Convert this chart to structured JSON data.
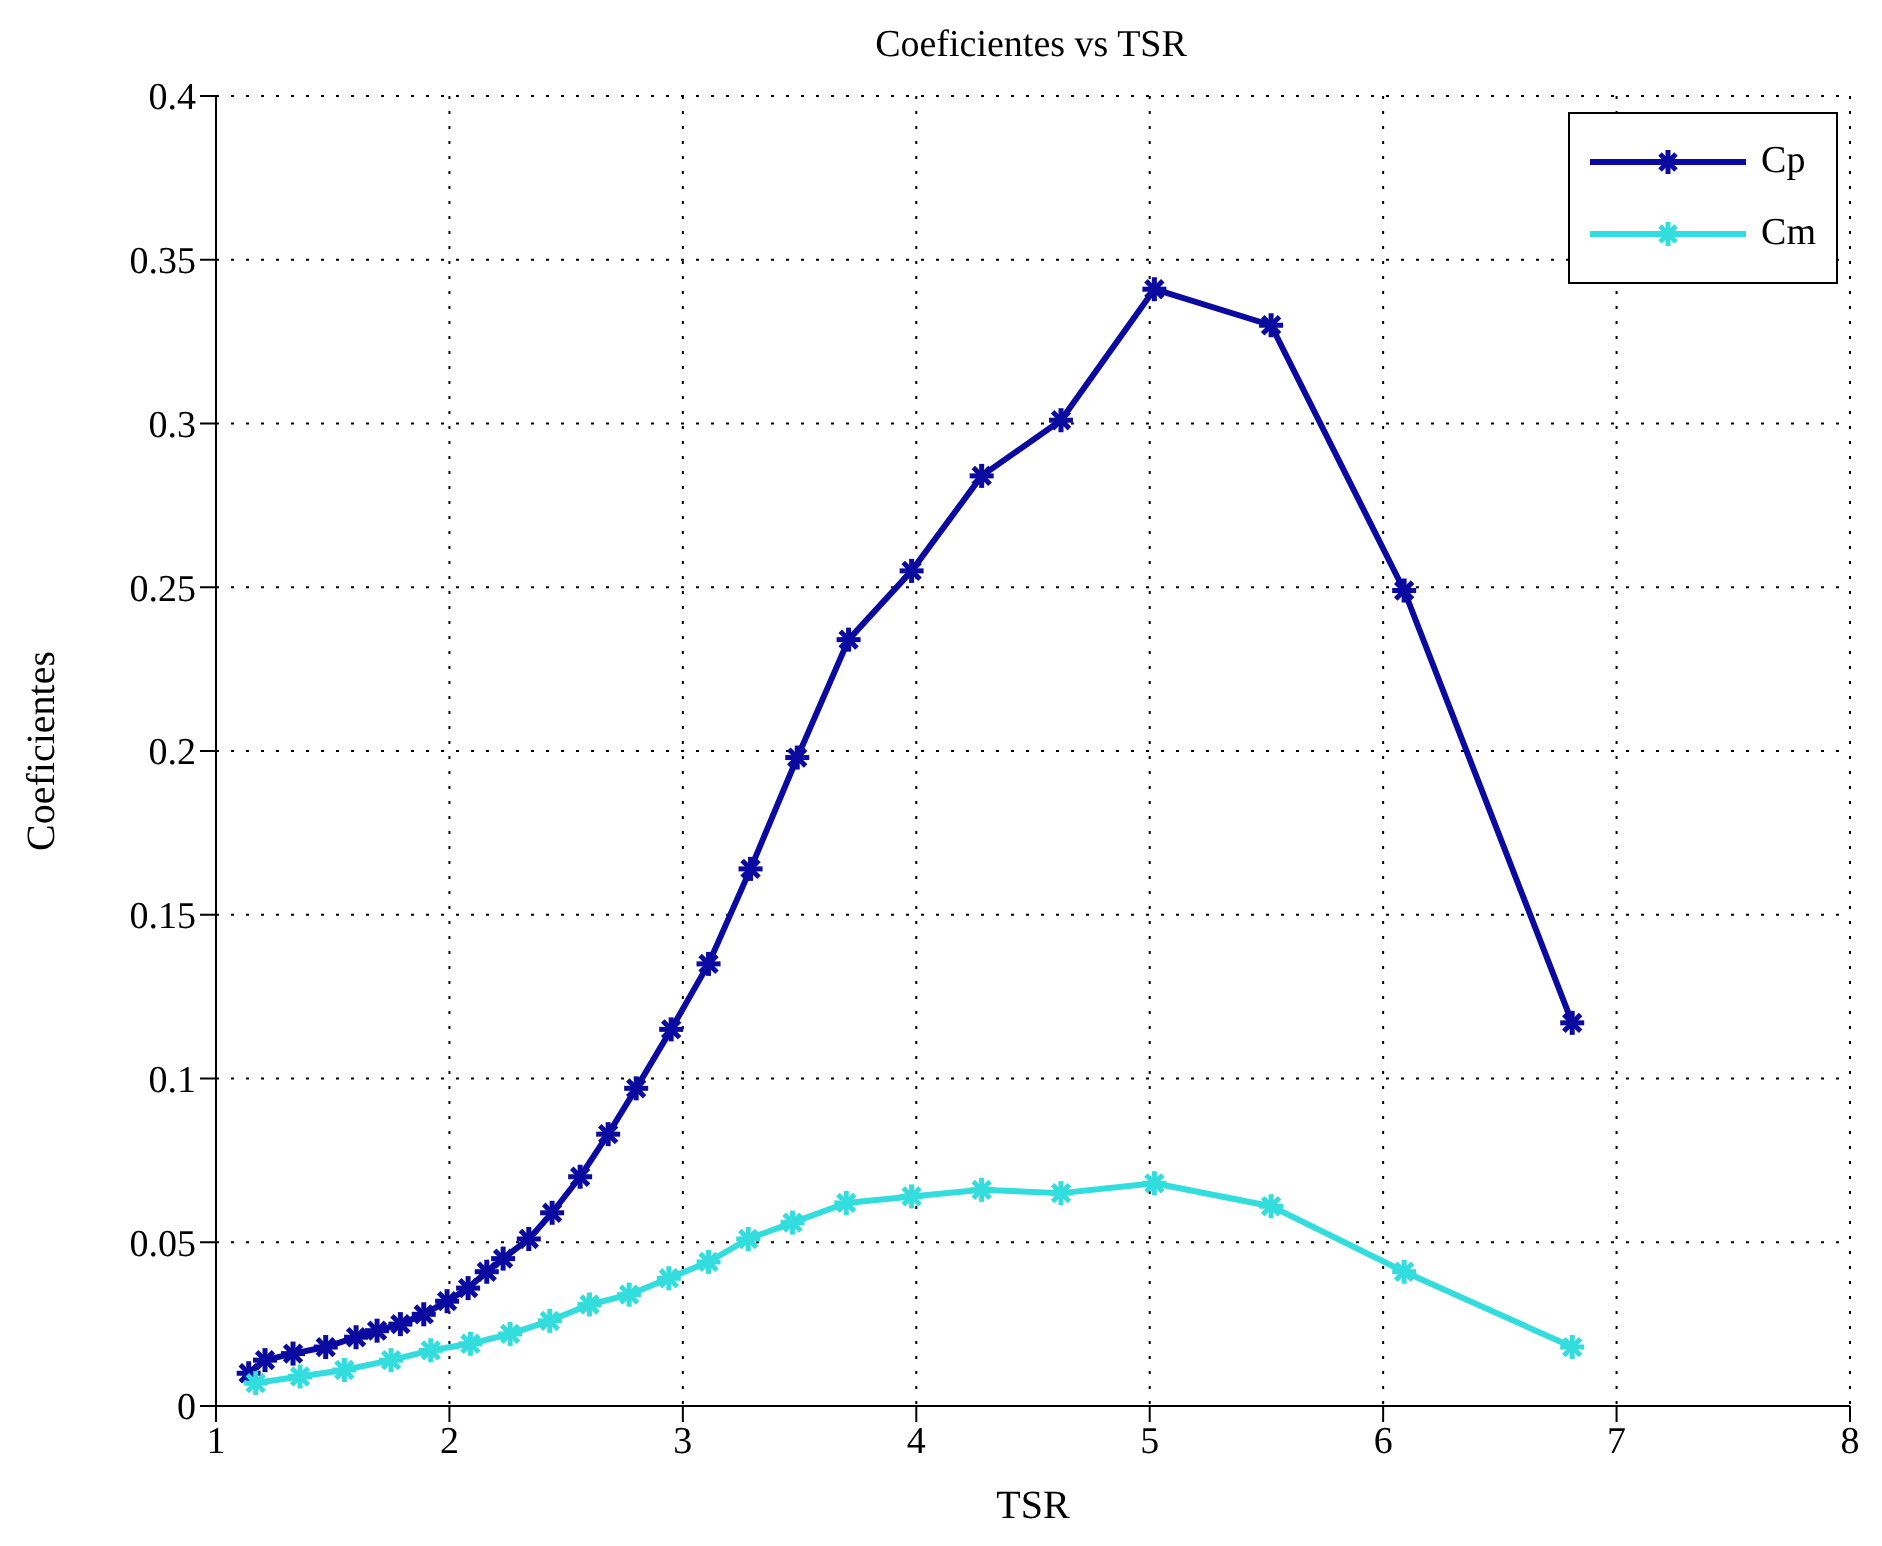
{
  "chart_data": {
    "type": "line",
    "title": "Coeficientes vs TSR",
    "xlabel": "TSR",
    "ylabel": "Coeficientes",
    "xlim": [
      1,
      8
    ],
    "xticks": [
      1,
      2,
      3,
      4,
      5,
      6,
      7,
      8
    ],
    "ylim": [
      0,
      0.4
    ],
    "yticks": [
      0,
      0.05,
      0.1,
      0.15,
      0.2,
      0.25,
      0.3,
      0.35,
      0.4
    ],
    "grid": true,
    "legend": "top right",
    "marker": "cross",
    "line_style": "solid",
    "series": [
      {
        "name": "Cp",
        "color": "#0a0aa0",
        "x": [
          1.14,
          1.21,
          1.33,
          1.47,
          1.6,
          1.69,
          1.79,
          1.89,
          1.99,
          2.08,
          2.16,
          2.23,
          2.34,
          2.44,
          2.56,
          2.68,
          2.8,
          2.95,
          3.11,
          3.29,
          3.49,
          3.71,
          3.98,
          4.28,
          4.62,
          5.02,
          5.52,
          6.09,
          6.81
        ],
        "values": [
          0.01,
          0.014,
          0.016,
          0.018,
          0.021,
          0.023,
          0.025,
          0.028,
          0.032,
          0.036,
          0.041,
          0.045,
          0.051,
          0.059,
          0.07,
          0.083,
          0.097,
          0.115,
          0.135,
          0.164,
          0.198,
          0.234,
          0.255,
          0.284,
          0.301,
          0.341,
          0.33,
          0.249,
          0.117
        ]
      },
      {
        "name": "Cm",
        "color": "#33dddd",
        "x": [
          1.17,
          1.36,
          1.55,
          1.75,
          1.92,
          2.09,
          2.26,
          2.43,
          2.6,
          2.77,
          2.94,
          3.11,
          3.28,
          3.47,
          3.7,
          3.98,
          4.28,
          4.62,
          5.02,
          5.52,
          6.09,
          6.81
        ],
        "values": [
          0.007,
          0.009,
          0.011,
          0.014,
          0.017,
          0.019,
          0.022,
          0.026,
          0.031,
          0.034,
          0.039,
          0.044,
          0.051,
          0.056,
          0.062,
          0.064,
          0.066,
          0.065,
          0.068,
          0.061,
          0.041,
          0.018
        ]
      }
    ]
  }
}
